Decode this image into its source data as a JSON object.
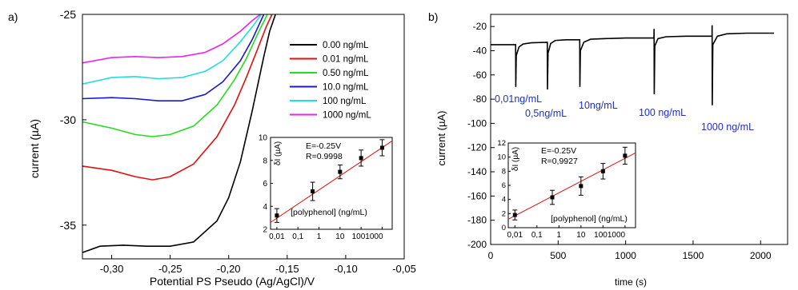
{
  "chart_data": [
    {
      "panel_label": "a)",
      "type": "line",
      "xlabel": "Potential PS Pseudo (Ag/AgCl)/V",
      "ylabel": "current (µA)",
      "xlim": [
        -0.325,
        -0.05
      ],
      "ylim": [
        -36.6,
        -25
      ],
      "xticks": [
        -0.3,
        -0.25,
        -0.2,
        -0.15,
        -0.1,
        -0.05
      ],
      "xtick_labels": [
        "-0,30",
        "-0,25",
        "-0,20",
        "-0,15",
        "-0,10",
        "-0,05"
      ],
      "yticks": [
        -35,
        -30,
        -25
      ],
      "ytick_labels": [
        "-35",
        "-30",
        "-25"
      ],
      "legend_position": "top-right",
      "series": [
        {
          "name": "0.00 ng/mL",
          "color": "#000000",
          "x": [
            -0.325,
            -0.31,
            -0.29,
            -0.27,
            -0.25,
            -0.23,
            -0.21,
            -0.2,
            -0.19,
            -0.18,
            -0.17,
            -0.165,
            -0.16
          ],
          "y": [
            -36.3,
            -36.0,
            -35.95,
            -36.0,
            -36.0,
            -35.8,
            -34.8,
            -33.7,
            -32.0,
            -29.6,
            -27.0,
            -25.8,
            -25.0
          ]
        },
        {
          "name": "0.01 ng/mL",
          "color": "#e01010",
          "x": [
            -0.325,
            -0.3,
            -0.28,
            -0.265,
            -0.25,
            -0.23,
            -0.21,
            -0.195,
            -0.185,
            -0.175,
            -0.168,
            -0.163
          ],
          "y": [
            -32.2,
            -32.4,
            -32.7,
            -32.85,
            -32.7,
            -32.1,
            -30.8,
            -29.3,
            -28.0,
            -26.6,
            -25.6,
            -25.0
          ]
        },
        {
          "name": "0.50 ng/mL",
          "color": "#22dd22",
          "x": [
            -0.325,
            -0.3,
            -0.28,
            -0.265,
            -0.25,
            -0.23,
            -0.21,
            -0.195,
            -0.185,
            -0.175,
            -0.167
          ],
          "y": [
            -30.1,
            -30.4,
            -30.7,
            -30.8,
            -30.7,
            -30.3,
            -29.3,
            -28.1,
            -27.1,
            -25.9,
            -25.0
          ]
        },
        {
          "name": "10.0 ng/mL",
          "color": "#1a1ad0",
          "x": [
            -0.325,
            -0.3,
            -0.28,
            -0.26,
            -0.24,
            -0.22,
            -0.205,
            -0.19,
            -0.18,
            -0.17
          ],
          "y": [
            -29.0,
            -28.95,
            -29.0,
            -29.1,
            -29.1,
            -28.8,
            -28.2,
            -27.2,
            -26.2,
            -25.0
          ]
        },
        {
          "name": "100 ng/mL",
          "color": "#22dddd",
          "x": [
            -0.325,
            -0.3,
            -0.28,
            -0.26,
            -0.24,
            -0.22,
            -0.205,
            -0.19,
            -0.18,
            -0.172
          ],
          "y": [
            -28.3,
            -28.0,
            -27.95,
            -28.05,
            -28.0,
            -27.7,
            -27.2,
            -26.3,
            -25.6,
            -25.0
          ]
        },
        {
          "name": "1000 ng/mL",
          "color": "#ee22ee",
          "x": [
            -0.325,
            -0.3,
            -0.28,
            -0.26,
            -0.24,
            -0.22,
            -0.205,
            -0.19,
            -0.18,
            -0.173
          ],
          "y": [
            -27.3,
            -27.05,
            -27.0,
            -27.05,
            -27.0,
            -26.8,
            -26.4,
            -25.8,
            -25.3,
            -25.0
          ]
        }
      ],
      "inset": {
        "annotation": [
          "E=-0.25V",
          "R=0.9998"
        ],
        "xlabel": "[polyphenol] (ng/mL)",
        "ylabel": "δI (µA)",
        "xscale": "log",
        "xlim": [
          0.005,
          3000
        ],
        "ylim": [
          2,
          10
        ],
        "xtick_labels": [
          "0,01",
          "0,1",
          "1",
          "10",
          "1001000"
        ],
        "yticks": [
          2,
          4,
          6,
          8,
          10
        ],
        "points": [
          {
            "x": 0.01,
            "y": 3.2,
            "err": 0.6
          },
          {
            "x": 0.5,
            "y": 5.3,
            "err": 0.8
          },
          {
            "x": 10,
            "y": 7.0,
            "err": 0.6
          },
          {
            "x": 100,
            "y": 8.2,
            "err": 0.7
          },
          {
            "x": 1000,
            "y": 9.1,
            "err": 0.7
          }
        ],
        "fit": {
          "x": [
            0.005,
            3000
          ],
          "y": [
            2.6,
            9.7
          ],
          "color": "#e01010"
        }
      }
    },
    {
      "panel_label": "b)",
      "type": "line",
      "xlabel": "time (s)",
      "ylabel": "current (µA)",
      "xlim": [
        0,
        2200
      ],
      "ylim": [
        -200,
        -10
      ],
      "xticks": [
        0,
        500,
        1000,
        1500,
        2000
      ],
      "yticks": [
        -200,
        -180,
        -160,
        -140,
        -120,
        -100,
        -80,
        -60,
        -40,
        -20
      ],
      "annotations": [
        "0,01ng/mL",
        "0,5ng/mL",
        "10ng/mL",
        "100 ng/mL",
        "1000 ng/mL"
      ],
      "annotation_color": "#1f2fd0",
      "series": [
        {
          "name": "",
          "color": "#000000",
          "x": [
            0,
            185,
            186,
            190,
            210,
            240,
            300,
            420,
            421,
            425,
            445,
            480,
            560,
            660,
            661,
            665,
            690,
            740,
            850,
            1000,
            1210,
            1211,
            1212,
            1216,
            1240,
            1300,
            1450,
            1640,
            1641,
            1642,
            1646,
            1680,
            1750,
            1900,
            2100
          ],
          "y": [
            -35,
            -35,
            -70,
            -44,
            -37,
            -34.5,
            -33.5,
            -33,
            -72,
            -42,
            -34,
            -31.5,
            -31,
            -31,
            -70,
            -40,
            -33,
            -30.5,
            -30,
            -29.5,
            -29.5,
            -22,
            -76,
            -36,
            -30,
            -28.5,
            -28,
            -28,
            -19,
            -85,
            -35,
            -28,
            -26,
            -25.5,
            -25.5
          ]
        }
      ],
      "inset": {
        "annotation": [
          "E=-0.25V",
          "R=0,9927"
        ],
        "xlabel": "[polyphenol] (ng/mL)",
        "ylabel": "δI (µA)",
        "xscale": "log",
        "xlim": [
          0.005,
          3000
        ],
        "ylim": [
          0,
          12
        ],
        "xtick_labels": [
          "0,01",
          "0,1",
          "1",
          "10",
          "1001000"
        ],
        "yticks": [
          0,
          2,
          4,
          6,
          8,
          10,
          12
        ],
        "points": [
          {
            "x": 0.01,
            "y": 1.8,
            "err": 0.7
          },
          {
            "x": 0.5,
            "y": 4.3,
            "err": 1.0
          },
          {
            "x": 10,
            "y": 5.9,
            "err": 1.3
          },
          {
            "x": 100,
            "y": 8.0,
            "err": 1.1
          },
          {
            "x": 1000,
            "y": 10.2,
            "err": 1.2
          }
        ],
        "fit": {
          "x": [
            0.005,
            3000
          ],
          "y": [
            1.2,
            10.6
          ],
          "color": "#e01010"
        }
      }
    }
  ]
}
